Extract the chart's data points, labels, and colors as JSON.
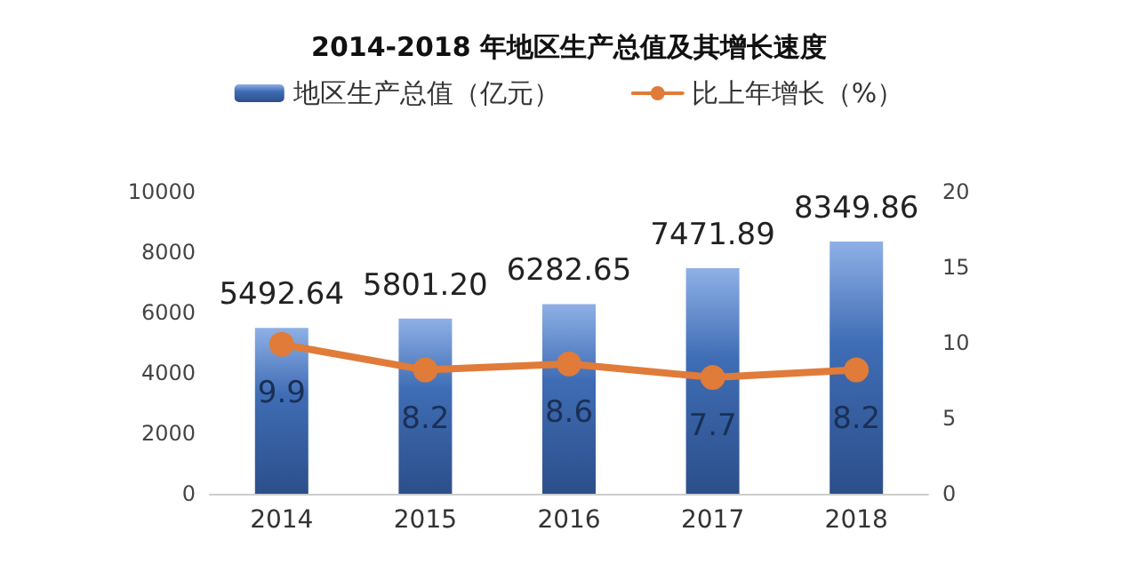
{
  "chart_data": {
    "type": "bar",
    "title": "2014-2018 年地区生产总值及其增长速度",
    "categories": [
      "2014",
      "2015",
      "2016",
      "2017",
      "2018"
    ],
    "series": [
      {
        "name": "地区生产总值（亿元）",
        "color": "#3f6db5",
        "values": [
          5492.64,
          5801.2,
          6282.65,
          7471.89,
          8349.86
        ],
        "value_labels": [
          "5492.64",
          "5801.20",
          "6282.65",
          "7471.89",
          "8349.86"
        ]
      },
      {
        "name": "比上年增长（%）",
        "type": "line",
        "axis": "y2",
        "color": "#e07b39",
        "values": [
          9.9,
          8.2,
          8.6,
          7.7,
          8.2
        ],
        "value_labels": [
          "9.9",
          "8.2",
          "8.6",
          "7.7",
          "8.2"
        ]
      }
    ],
    "ylim": [
      0,
      10000
    ],
    "yticks": [
      0,
      2000,
      4000,
      6000,
      8000,
      10000
    ],
    "y2lim": [
      0,
      20
    ],
    "y2ticks": [
      0,
      5,
      10,
      15,
      20
    ],
    "legend": "top",
    "grid": false,
    "marker": "circle",
    "line_style": "solid"
  }
}
